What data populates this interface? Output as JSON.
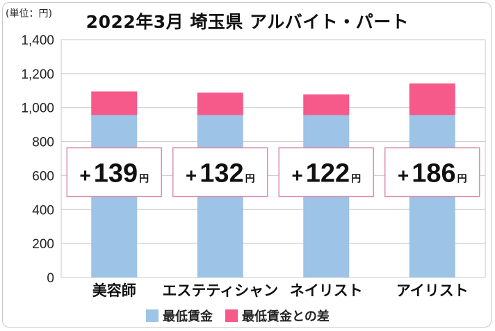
{
  "unit_label": "(単位：円)",
  "colors": {
    "base": "#9dc3e6",
    "diff": "#f65a8a",
    "callout_border": "#d98fb3",
    "grid": "#c8c8c8"
  },
  "chart_data": {
    "type": "bar",
    "stacked": true,
    "title": "2022年3月 埼玉県 アルバイト・パート",
    "categories": [
      "美容師",
      "エステティシャン",
      "ネイリスト",
      "アイリスト"
    ],
    "series": [
      {
        "name": "最低賃金",
        "values": [
          956,
          956,
          956,
          956
        ]
      },
      {
        "name": "最低賃金との差",
        "values": [
          139,
          132,
          122,
          186
        ]
      }
    ],
    "callouts": [
      {
        "sign": "+",
        "number": "139",
        "unit": "円"
      },
      {
        "sign": "+",
        "number": "132",
        "unit": "円"
      },
      {
        "sign": "+",
        "number": "122",
        "unit": "円"
      },
      {
        "sign": "+",
        "number": "186",
        "unit": "円"
      }
    ],
    "ylim": [
      0,
      1400
    ],
    "yticks": [
      0,
      200,
      400,
      600,
      800,
      1000,
      1200,
      1400
    ],
    "ytick_labels": [
      "0",
      "200",
      "400",
      "600",
      "800",
      "1,000",
      "1,200",
      "1,400"
    ],
    "callout_value_level": 620,
    "grid": true,
    "legend_position": "bottom"
  }
}
